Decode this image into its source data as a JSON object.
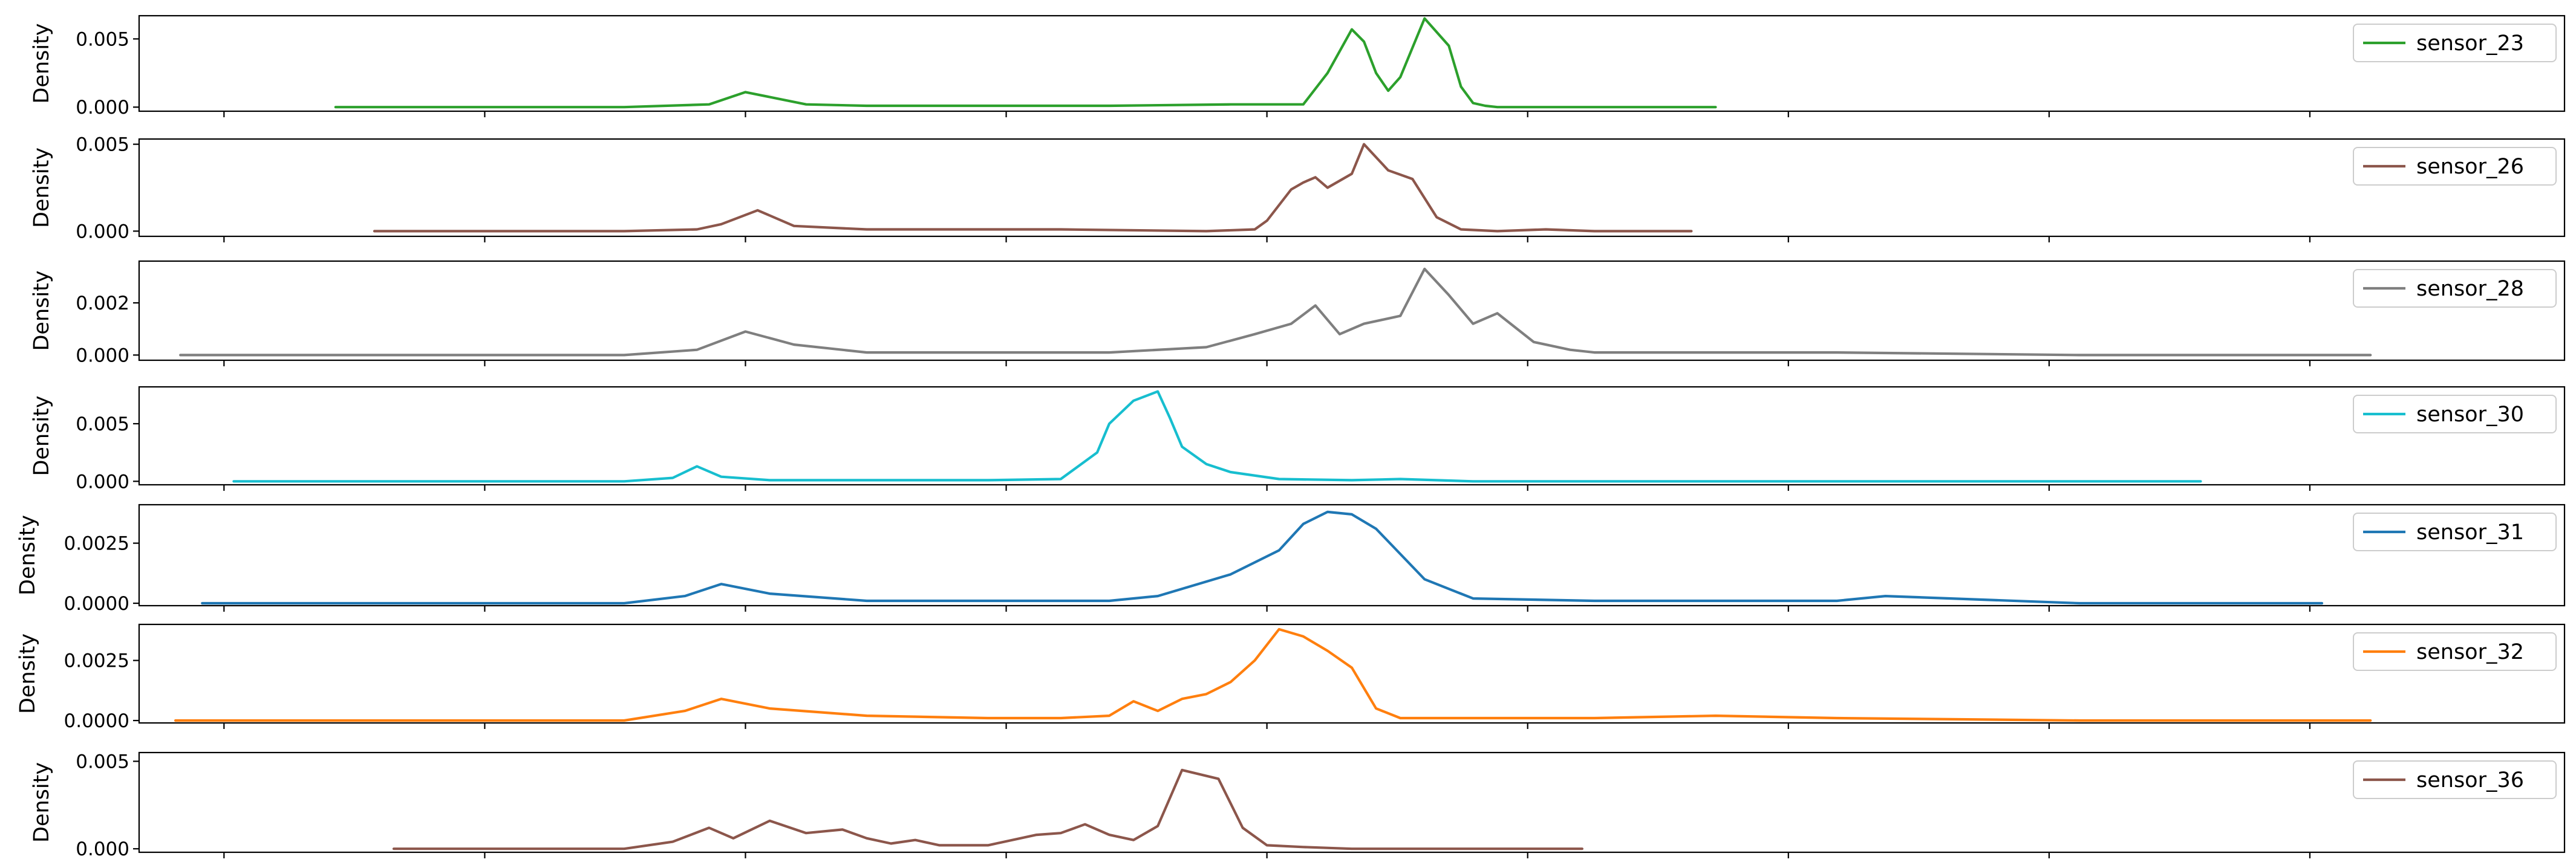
{
  "chart_data": [
    {
      "type": "line",
      "ylabel": "Density",
      "legend_position": "top-right",
      "ylim": [
        -0.0003,
        0.0067
      ],
      "yticks": [
        0.0,
        0.005
      ],
      "ytick_labels": [
        "0.000",
        "0.005"
      ],
      "series": [
        {
          "name": "sensor_23",
          "color": "#2ca02c",
          "x": [
            0.081,
            0.15,
            0.2,
            0.235,
            0.25,
            0.275,
            0.3,
            0.35,
            0.4,
            0.45,
            0.48,
            0.49,
            0.5,
            0.505,
            0.51,
            0.515,
            0.52,
            0.53,
            0.54,
            0.545,
            0.55,
            0.555,
            0.56,
            0.57,
            0.58,
            0.65
          ],
          "y": [
            0.0,
            0.0,
            0.0,
            0.0002,
            0.0011,
            0.0002,
            0.0001,
            0.0001,
            0.0001,
            0.0002,
            0.0002,
            0.0025,
            0.0057,
            0.0048,
            0.0025,
            0.0012,
            0.0022,
            0.0065,
            0.0045,
            0.0015,
            0.0003,
            0.0001,
            0.0,
            0.0,
            0.0,
            0.0
          ]
        }
      ]
    },
    {
      "type": "line",
      "ylabel": "Density",
      "legend_position": "top-right",
      "ylim": [
        -0.0003,
        0.0053
      ],
      "yticks": [
        0.0,
        0.005
      ],
      "ytick_labels": [
        "0.000",
        "0.005"
      ],
      "series": [
        {
          "name": "sensor_26",
          "color": "#8c564b",
          "x": [
            0.097,
            0.2,
            0.23,
            0.24,
            0.255,
            0.27,
            0.3,
            0.35,
            0.38,
            0.44,
            0.46,
            0.465,
            0.475,
            0.48,
            0.485,
            0.49,
            0.5,
            0.505,
            0.515,
            0.525,
            0.535,
            0.545,
            0.56,
            0.58,
            0.6,
            0.64
          ],
          "y": [
            0.0,
            0.0,
            0.0001,
            0.0004,
            0.0012,
            0.0003,
            0.0001,
            0.0001,
            0.0001,
            0.0,
            0.0001,
            0.0006,
            0.0024,
            0.0028,
            0.0031,
            0.0025,
            0.0033,
            0.005,
            0.0035,
            0.003,
            0.0008,
            0.0001,
            0.0,
            0.0001,
            0.0,
            0.0
          ]
        }
      ]
    },
    {
      "type": "line",
      "ylabel": "Density",
      "legend_position": "top-right",
      "ylim": [
        -0.0002,
        0.0036
      ],
      "yticks": [
        0.0,
        0.002
      ],
      "ytick_labels": [
        "0.000",
        "0.002"
      ],
      "series": [
        {
          "name": "sensor_28",
          "color": "#7f7f7f",
          "x": [
            0.017,
            0.2,
            0.23,
            0.25,
            0.27,
            0.3,
            0.35,
            0.4,
            0.44,
            0.46,
            0.475,
            0.485,
            0.495,
            0.505,
            0.52,
            0.53,
            0.54,
            0.55,
            0.56,
            0.575,
            0.59,
            0.6,
            0.65,
            0.7,
            0.8,
            0.85,
            0.92
          ],
          "y": [
            0.0,
            0.0,
            0.0002,
            0.0009,
            0.0004,
            0.0001,
            0.0001,
            0.0001,
            0.0003,
            0.0008,
            0.0012,
            0.0019,
            0.0008,
            0.0012,
            0.0015,
            0.0033,
            0.0023,
            0.0012,
            0.0016,
            0.0005,
            0.0002,
            0.0001,
            0.0001,
            0.0001,
            0.0,
            0.0,
            0.0
          ]
        }
      ]
    },
    {
      "type": "line",
      "ylabel": "Density",
      "legend_position": "top-right",
      "ylim": [
        -0.0003,
        0.0082
      ],
      "yticks": [
        0.0,
        0.005
      ],
      "ytick_labels": [
        "0.000",
        "0.005"
      ],
      "series": [
        {
          "name": "sensor_30",
          "color": "#17becf",
          "x": [
            0.039,
            0.2,
            0.22,
            0.23,
            0.24,
            0.26,
            0.3,
            0.35,
            0.38,
            0.395,
            0.4,
            0.41,
            0.42,
            0.425,
            0.43,
            0.44,
            0.45,
            0.47,
            0.5,
            0.52,
            0.55,
            0.6,
            0.7,
            0.85
          ],
          "y": [
            0.0,
            0.0,
            0.0003,
            0.0013,
            0.0004,
            0.0001,
            0.0001,
            0.0001,
            0.0002,
            0.0025,
            0.005,
            0.007,
            0.0078,
            0.0055,
            0.003,
            0.0015,
            0.0008,
            0.0002,
            0.0001,
            0.0002,
            0.0,
            0.0,
            0.0,
            0.0
          ]
        }
      ]
    },
    {
      "type": "line",
      "ylabel": "Density",
      "legend_position": "top-right",
      "ylim": [
        -0.0001,
        0.0041
      ],
      "yticks": [
        0.0,
        0.0025
      ],
      "ytick_labels": [
        "0.0000",
        "0.0025"
      ],
      "series": [
        {
          "name": "sensor_31",
          "color": "#1f77b4",
          "x": [
            0.026,
            0.2,
            0.225,
            0.24,
            0.26,
            0.3,
            0.35,
            0.4,
            0.42,
            0.45,
            0.47,
            0.48,
            0.49,
            0.5,
            0.51,
            0.53,
            0.55,
            0.6,
            0.65,
            0.68,
            0.7,
            0.72,
            0.8,
            0.9
          ],
          "y": [
            0.0,
            0.0,
            0.0003,
            0.0008,
            0.0004,
            0.0001,
            0.0001,
            0.0001,
            0.0003,
            0.0012,
            0.0022,
            0.0033,
            0.0038,
            0.0037,
            0.0031,
            0.001,
            0.0002,
            0.0001,
            0.0001,
            0.0001,
            0.0001,
            0.0003,
            0.0,
            0.0
          ]
        }
      ]
    },
    {
      "type": "line",
      "ylabel": "Density",
      "legend_position": "top-right",
      "ylim": [
        -0.0001,
        0.004
      ],
      "yticks": [
        0.0,
        0.0025
      ],
      "ytick_labels": [
        "0.0000",
        "0.0025"
      ],
      "series": [
        {
          "name": "sensor_32",
          "color": "#ff7f0e",
          "x": [
            0.015,
            0.2,
            0.225,
            0.24,
            0.26,
            0.3,
            0.35,
            0.38,
            0.4,
            0.41,
            0.42,
            0.43,
            0.44,
            0.45,
            0.46,
            0.47,
            0.48,
            0.49,
            0.5,
            0.51,
            0.52,
            0.53,
            0.6,
            0.65,
            0.7,
            0.8,
            0.92
          ],
          "y": [
            0.0,
            0.0,
            0.0004,
            0.0009,
            0.0005,
            0.0002,
            0.0001,
            0.0001,
            0.0002,
            0.0008,
            0.0004,
            0.0009,
            0.0011,
            0.0016,
            0.0025,
            0.0038,
            0.0035,
            0.0029,
            0.0022,
            0.0005,
            0.0001,
            0.0001,
            0.0001,
            0.0002,
            0.0001,
            0.0,
            0.0
          ]
        }
      ]
    },
    {
      "type": "line",
      "ylabel": "Density",
      "legend_position": "top-right",
      "ylim": [
        -0.0002,
        0.0055
      ],
      "yticks": [
        0.0,
        0.005
      ],
      "ytick_labels": [
        "0.000",
        "0.005"
      ],
      "series": [
        {
          "name": "sensor_36",
          "color": "#8c564b",
          "x": [
            0.105,
            0.2,
            0.22,
            0.235,
            0.245,
            0.26,
            0.275,
            0.29,
            0.3,
            0.31,
            0.32,
            0.33,
            0.35,
            0.37,
            0.38,
            0.39,
            0.4,
            0.41,
            0.42,
            0.43,
            0.445,
            0.455,
            0.465,
            0.48,
            0.5,
            0.55,
            0.595
          ],
          "y": [
            0.0,
            0.0,
            0.0004,
            0.0012,
            0.0006,
            0.0016,
            0.0009,
            0.0011,
            0.0006,
            0.0003,
            0.0005,
            0.0002,
            0.0002,
            0.0008,
            0.0009,
            0.0014,
            0.0008,
            0.0005,
            0.0013,
            0.0045,
            0.004,
            0.0012,
            0.0002,
            0.0001,
            0.0,
            0.0,
            0.0
          ]
        }
      ]
    }
  ]
}
